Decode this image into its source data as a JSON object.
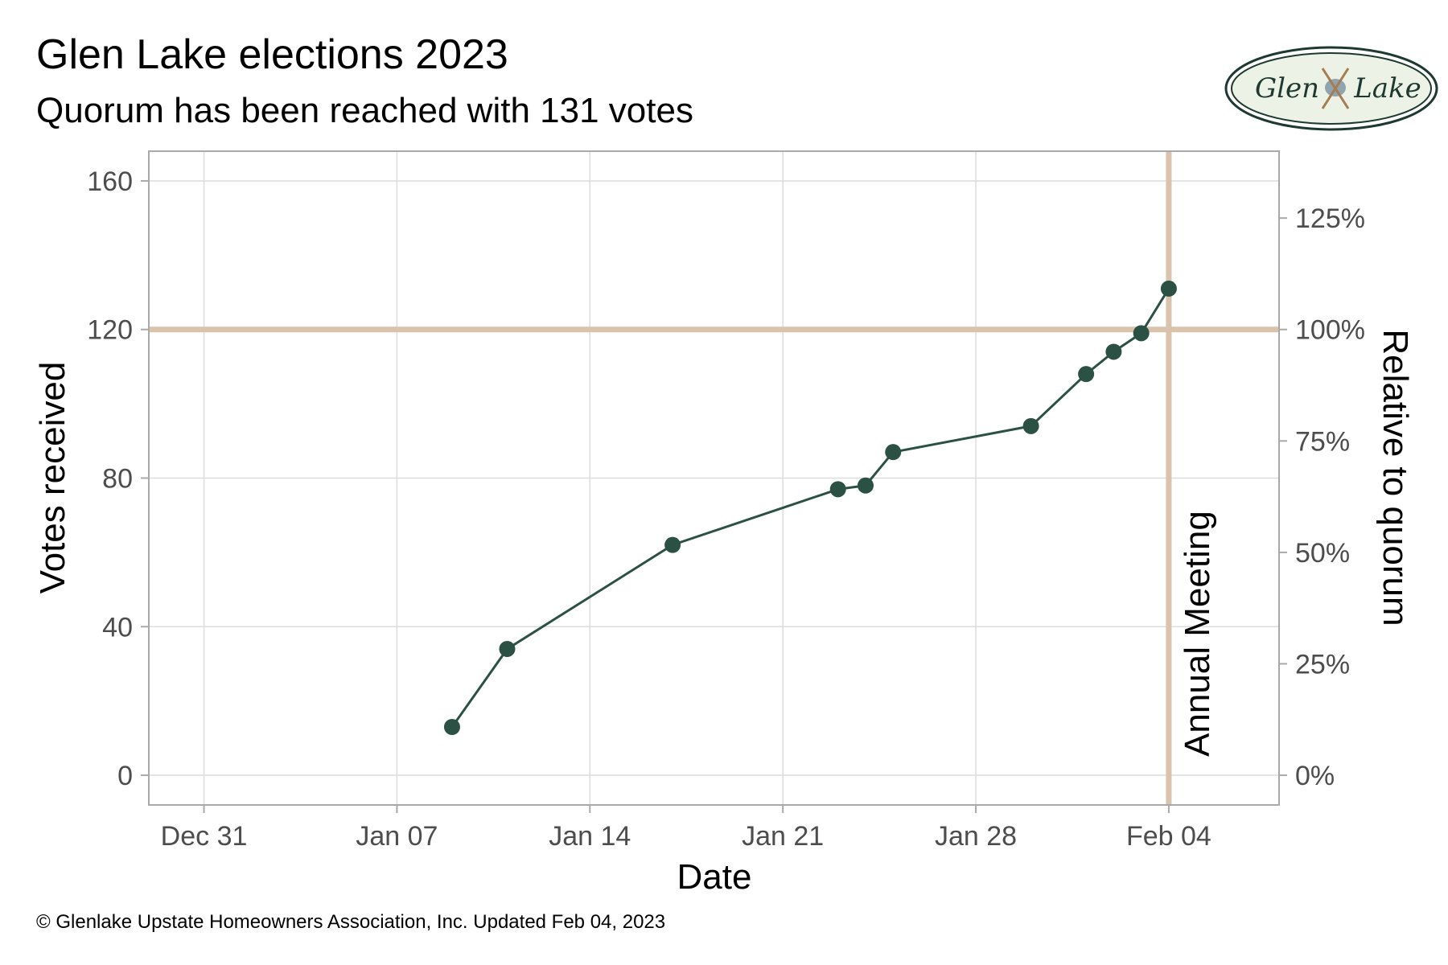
{
  "header": {
    "title": "Glen Lake elections 2023",
    "subtitle": "Quorum has been reached with 131 votes"
  },
  "logo": {
    "text_left": "Glen",
    "text_right": "Lake",
    "icon": "crossed-oars-icon"
  },
  "footer": {
    "caption": "© Glenlake Upstate Homeowners Association, Inc. Updated Feb 04, 2023"
  },
  "colors": {
    "series": "#2b5145",
    "reference": "#d9c3ad",
    "grid": "#dcdcdc",
    "panel_border": "#a9a9a9",
    "tick_text": "#4d4d4d",
    "logo_fill": "#ecf2e6"
  },
  "chart_data": {
    "type": "line",
    "xlabel": "Date",
    "ylabel": "Votes received",
    "ylabel_right": "Relative to quorum",
    "x_ticks": [
      "2022-12-31",
      "2023-01-07",
      "2023-01-14",
      "2023-01-21",
      "2023-01-28",
      "2023-02-04"
    ],
    "x_tick_labels": [
      "Dec 31",
      "Jan 07",
      "Jan 14",
      "Jan 21",
      "Jan 28",
      "Feb 04"
    ],
    "xlim": [
      "2022-12-29",
      "2023-02-08"
    ],
    "ylim": [
      -8,
      168
    ],
    "y_ticks": [
      0,
      40,
      80,
      120,
      160
    ],
    "y_ticks_right": [
      "0%",
      "25%",
      "50%",
      "75%",
      "100%",
      "125%"
    ],
    "quorum": 120,
    "series": [
      {
        "x": [
          "2023-01-09",
          "2023-01-11",
          "2023-01-17",
          "2023-01-23",
          "2023-01-24",
          "2023-01-25",
          "2023-01-30",
          "2023-02-01",
          "2023-02-02",
          "2023-02-03",
          "2023-02-04"
        ],
        "y": [
          13,
          34,
          62,
          77,
          78,
          87,
          94,
          108,
          114,
          119,
          131
        ]
      }
    ],
    "annotations": [
      {
        "type": "hline",
        "y": 120
      },
      {
        "type": "vline",
        "x": "2023-02-04",
        "label": "Annual Meeting"
      }
    ],
    "grid": true
  }
}
